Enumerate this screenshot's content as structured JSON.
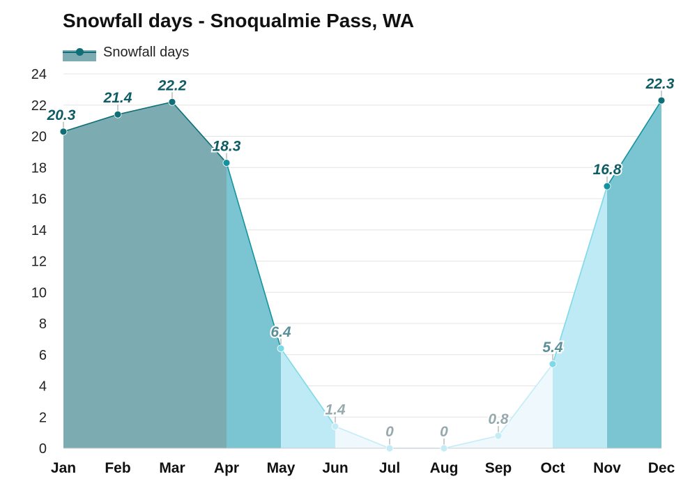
{
  "chart_data": {
    "type": "area",
    "title": "Snowfall days - Snoqualmie Pass, WA",
    "xlabel": "",
    "ylabel": "",
    "categories": [
      "Jan",
      "Feb",
      "Mar",
      "Apr",
      "May",
      "Jun",
      "Jul",
      "Aug",
      "Sep",
      "Oct",
      "Nov",
      "Dec"
    ],
    "series": [
      {
        "name": "Snowfall days",
        "values": [
          20.3,
          21.4,
          22.2,
          18.3,
          6.4,
          1.4,
          0,
          0,
          0.8,
          5.4,
          16.8,
          22.3
        ]
      }
    ],
    "value_labels": [
      "20.3",
      "21.4",
      "22.2",
      "18.3",
      "6.4",
      "1.4",
      "0",
      "0",
      "0.8",
      "5.4",
      "16.8",
      "22.3"
    ],
    "ylim": [
      0,
      24
    ],
    "yticks": [
      0,
      2,
      4,
      6,
      8,
      10,
      12,
      14,
      16,
      18,
      20,
      22,
      24
    ],
    "grid": true,
    "legend_position": "top-left",
    "colors": {
      "band_high": "#7cabb1",
      "band_mid": "#7ac5d1",
      "band_low": "#bdeaf4",
      "band_trace": "#eef8fd",
      "line_high": "#0f6e76",
      "line_mid": "#15929f",
      "line_low": "#7dd9e8",
      "line_trace": "#c4ecf6",
      "label_high": "#0f5c64",
      "label_low": "#5c8f98",
      "label_trace": "#96a9ad"
    }
  }
}
